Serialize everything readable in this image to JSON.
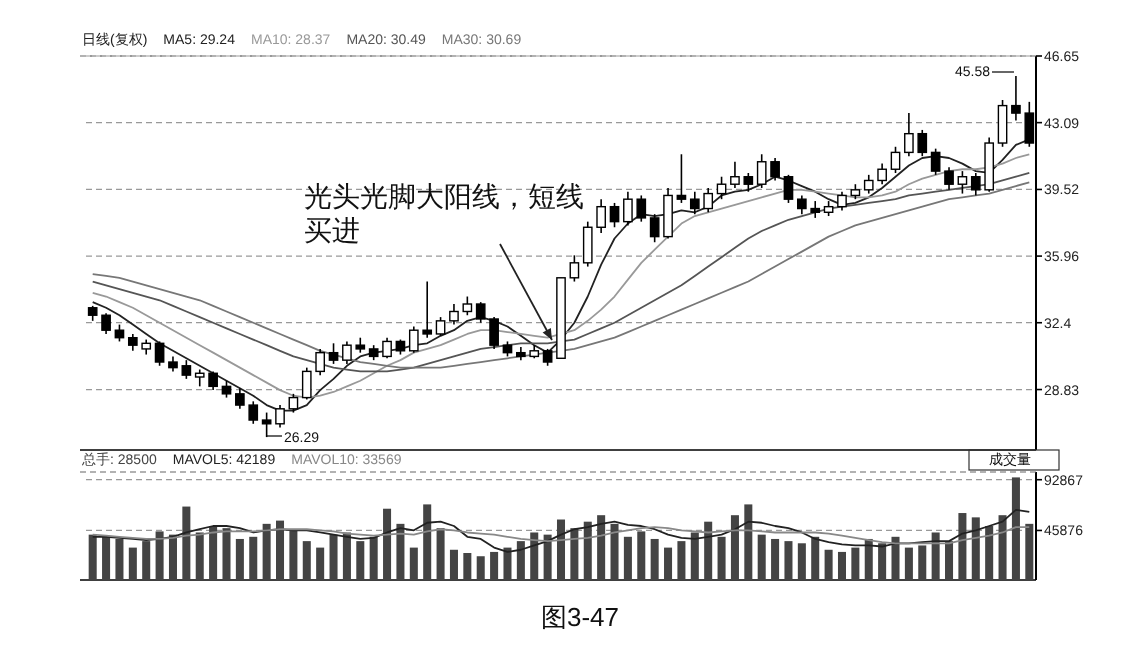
{
  "chart_data": [
    {
      "type": "candlestick",
      "title": "日线(复权)",
      "legend": "top left",
      "grid": "y",
      "categories": [
        null,
        null,
        null,
        null,
        null,
        null,
        null,
        null,
        null,
        null,
        null,
        null,
        null,
        null,
        null,
        null,
        null,
        null,
        null,
        null,
        null,
        null,
        null,
        null,
        null,
        null,
        null,
        null,
        null,
        null,
        null,
        null,
        null,
        null,
        null,
        null,
        null,
        null,
        null,
        null,
        null,
        null,
        null,
        null,
        null,
        null,
        null,
        null,
        null,
        null,
        null,
        null,
        null,
        null,
        null,
        null,
        null,
        null,
        null,
        null,
        null,
        null,
        null,
        null,
        null,
        null,
        null,
        null,
        null,
        null,
        null
      ],
      "ohlc": [
        [
          33.2,
          33.3,
          32.5,
          32.8
        ],
        [
          32.8,
          32.9,
          31.8,
          32.0
        ],
        [
          32.0,
          32.3,
          31.4,
          31.6
        ],
        [
          31.6,
          31.8,
          30.9,
          31.2
        ],
        [
          31.0,
          31.5,
          30.7,
          31.3
        ],
        [
          31.3,
          31.4,
          30.1,
          30.3
        ],
        [
          30.3,
          30.6,
          29.8,
          30.0
        ],
        [
          30.1,
          30.4,
          29.4,
          29.6
        ],
        [
          29.5,
          29.9,
          29.0,
          29.7
        ],
        [
          29.7,
          29.8,
          28.8,
          29.0
        ],
        [
          29.0,
          29.3,
          28.4,
          28.6
        ],
        [
          28.6,
          28.9,
          27.8,
          28.0
        ],
        [
          28.0,
          28.2,
          27.0,
          27.2
        ],
        [
          27.2,
          27.6,
          26.29,
          27.0
        ],
        [
          27.0,
          28.0,
          26.8,
          27.8
        ],
        [
          27.8,
          28.6,
          27.6,
          28.4
        ],
        [
          28.4,
          30.0,
          28.3,
          29.8
        ],
        [
          29.8,
          31.0,
          29.6,
          30.8
        ],
        [
          30.8,
          31.3,
          30.2,
          30.4
        ],
        [
          30.4,
          31.4,
          30.2,
          31.2
        ],
        [
          31.2,
          31.6,
          30.8,
          31.0
        ],
        [
          31.0,
          31.2,
          30.4,
          30.6
        ],
        [
          30.6,
          31.6,
          30.5,
          31.4
        ],
        [
          31.4,
          31.5,
          30.7,
          30.9
        ],
        [
          30.9,
          32.2,
          30.8,
          32.0
        ],
        [
          32.0,
          34.6,
          31.6,
          31.8
        ],
        [
          31.8,
          32.7,
          31.7,
          32.5
        ],
        [
          32.5,
          33.4,
          32.3,
          33.0
        ],
        [
          33.0,
          33.8,
          32.8,
          33.4
        ],
        [
          33.4,
          33.5,
          32.4,
          32.6
        ],
        [
          32.6,
          32.7,
          31.0,
          31.2
        ],
        [
          31.2,
          31.4,
          30.6,
          30.8
        ],
        [
          30.8,
          31.1,
          30.4,
          30.6
        ],
        [
          30.6,
          31.2,
          30.5,
          30.9
        ],
        [
          30.9,
          31.0,
          30.1,
          30.3
        ],
        [
          30.5,
          34.8,
          30.5,
          34.8
        ],
        [
          34.8,
          36.0,
          34.6,
          35.6
        ],
        [
          35.6,
          37.8,
          35.4,
          37.5
        ],
        [
          37.5,
          39.0,
          37.2,
          38.6
        ],
        [
          38.6,
          38.8,
          37.5,
          37.8
        ],
        [
          37.8,
          39.4,
          37.6,
          39.0
        ],
        [
          39.0,
          39.2,
          37.8,
          38.0
        ],
        [
          38.0,
          38.2,
          36.7,
          37.0
        ],
        [
          37.0,
          39.6,
          36.9,
          39.2
        ],
        [
          39.2,
          41.4,
          38.8,
          39.0
        ],
        [
          39.0,
          39.4,
          38.2,
          38.5
        ],
        [
          38.5,
          39.6,
          38.3,
          39.3
        ],
        [
          39.3,
          40.2,
          39.0,
          39.8
        ],
        [
          39.8,
          41.0,
          39.6,
          40.2
        ],
        [
          40.2,
          40.4,
          39.4,
          39.8
        ],
        [
          39.8,
          41.4,
          39.6,
          41.0
        ],
        [
          41.0,
          41.2,
          40.0,
          40.2
        ],
        [
          40.2,
          40.3,
          38.8,
          39.0
        ],
        [
          39.0,
          39.2,
          38.2,
          38.5
        ],
        [
          38.5,
          38.9,
          38.0,
          38.3
        ],
        [
          38.3,
          38.9,
          38.1,
          38.6
        ],
        [
          38.6,
          39.4,
          38.4,
          39.2
        ],
        [
          39.2,
          39.8,
          39.0,
          39.5
        ],
        [
          39.5,
          40.3,
          39.3,
          40.0
        ],
        [
          40.0,
          40.9,
          39.8,
          40.6
        ],
        [
          40.6,
          41.8,
          40.4,
          41.5
        ],
        [
          41.5,
          43.6,
          41.3,
          42.5
        ],
        [
          42.5,
          42.7,
          41.3,
          41.5
        ],
        [
          41.5,
          41.7,
          40.3,
          40.5
        ],
        [
          40.5,
          40.7,
          39.5,
          39.8
        ],
        [
          39.8,
          40.5,
          39.3,
          40.2
        ],
        [
          40.2,
          40.4,
          39.2,
          39.5
        ],
        [
          39.5,
          42.3,
          39.4,
          42.0
        ],
        [
          42.0,
          44.3,
          41.8,
          44.0
        ],
        [
          44.0,
          45.58,
          43.2,
          43.6
        ],
        [
          43.6,
          44.2,
          41.8,
          42.0
        ]
      ],
      "color": "#000000",
      "series": [
        {
          "type": "line",
          "name": "MA5: 29.24",
          "color": "#222222",
          "values": [
            33.5,
            33.2,
            32.8,
            32.3,
            31.8,
            31.3,
            30.9,
            30.5,
            30.1,
            29.7,
            29.3,
            28.9,
            28.5,
            28.0,
            27.7,
            27.7,
            28.0,
            28.8,
            29.4,
            30.1,
            30.6,
            30.8,
            30.9,
            31.0,
            31.2,
            31.3,
            31.7,
            32.0,
            32.5,
            32.7,
            32.5,
            32.2,
            31.7,
            31.2,
            30.8,
            31.5,
            32.4,
            33.8,
            35.5,
            36.9,
            37.7,
            38.2,
            38.1,
            38.2,
            38.4,
            38.3,
            38.6,
            39.2,
            39.4,
            39.5,
            39.8,
            40.2,
            40.0,
            39.7,
            39.4,
            39.0,
            38.7,
            38.8,
            39.1,
            39.6,
            40.2,
            40.8,
            41.2,
            41.3,
            41.2,
            40.9,
            40.5,
            40.4,
            41.1,
            41.9,
            42.2
          ]
        },
        {
          "type": "line",
          "name": "MA10: 28.37",
          "color": "#999999",
          "values": [
            34.0,
            33.8,
            33.5,
            33.2,
            32.8,
            32.4,
            32.0,
            31.6,
            31.2,
            30.8,
            30.4,
            30.0,
            29.6,
            29.2,
            28.8,
            28.5,
            28.4,
            28.5,
            28.7,
            29.0,
            29.3,
            29.7,
            30.1,
            30.4,
            30.8,
            31.0,
            31.2,
            31.5,
            31.8,
            32.0,
            32.0,
            31.9,
            31.8,
            31.7,
            31.6,
            31.8,
            32.0,
            32.5,
            33.1,
            33.8,
            34.7,
            35.6,
            36.3,
            37.0,
            37.7,
            38.1,
            38.3,
            38.5,
            38.7,
            38.9,
            39.1,
            39.3,
            39.5,
            39.5,
            39.4,
            39.3,
            39.2,
            39.1,
            39.1,
            39.2,
            39.4,
            39.8,
            40.1,
            40.3,
            40.5,
            40.6,
            40.6,
            40.7,
            40.9,
            41.2,
            41.4
          ]
        },
        {
          "type": "line",
          "name": "MA20: 30.49",
          "color": "#555555",
          "values": [
            34.6,
            34.4,
            34.2,
            34.0,
            33.8,
            33.6,
            33.3,
            33.0,
            32.7,
            32.4,
            32.1,
            31.8,
            31.5,
            31.2,
            30.9,
            30.6,
            30.4,
            30.2,
            30.0,
            29.9,
            29.8,
            29.8,
            29.8,
            29.9,
            30.0,
            30.2,
            30.4,
            30.6,
            30.8,
            31.0,
            31.1,
            31.2,
            31.3,
            31.3,
            31.3,
            31.4,
            31.5,
            31.8,
            32.1,
            32.4,
            32.8,
            33.2,
            33.6,
            34.0,
            34.4,
            34.9,
            35.4,
            35.9,
            36.4,
            36.9,
            37.3,
            37.6,
            37.9,
            38.1,
            38.3,
            38.5,
            38.6,
            38.7,
            38.8,
            38.9,
            39.0,
            39.2,
            39.3,
            39.4,
            39.5,
            39.6,
            39.7,
            39.8,
            40.0,
            40.2,
            40.4
          ]
        },
        {
          "type": "line",
          "name": "MA30: 30.69",
          "color": "#777777",
          "values": [
            35.0,
            34.9,
            34.8,
            34.6,
            34.4,
            34.2,
            34.0,
            33.8,
            33.6,
            33.3,
            33.0,
            32.7,
            32.4,
            32.1,
            31.8,
            31.5,
            31.2,
            30.9,
            30.7,
            30.5,
            30.3,
            30.2,
            30.1,
            30.0,
            30.0,
            30.0,
            30.0,
            30.1,
            30.2,
            30.3,
            30.4,
            30.5,
            30.6,
            30.7,
            30.8,
            30.9,
            31.0,
            31.2,
            31.4,
            31.6,
            31.9,
            32.2,
            32.5,
            32.8,
            33.1,
            33.4,
            33.7,
            34.0,
            34.3,
            34.6,
            35.0,
            35.4,
            35.8,
            36.2,
            36.6,
            37.0,
            37.3,
            37.6,
            37.8,
            38.0,
            38.2,
            38.4,
            38.6,
            38.8,
            39.0,
            39.1,
            39.2,
            39.3,
            39.5,
            39.7,
            39.9
          ]
        }
      ],
      "ylim": [
        25.6,
        46.65
      ],
      "yticks": [
        46.65,
        43.09,
        39.52,
        35.96,
        32.4,
        28.83
      ],
      "annotations": [
        "45.58",
        "26.29",
        "光头光脚大阳线，短线买进",
        "图3-47"
      ]
    },
    {
      "type": "bar",
      "legend": "top left",
      "grid": "y",
      "categories": [
        null,
        null,
        null,
        null,
        null,
        null,
        null,
        null,
        null,
        null,
        null,
        null,
        null,
        null,
        null,
        null,
        null,
        null,
        null,
        null,
        null,
        null,
        null,
        null,
        null,
        null,
        null,
        null,
        null,
        null,
        null,
        null,
        null,
        null,
        null,
        null,
        null,
        null,
        null,
        null,
        null,
        null,
        null,
        null,
        null,
        null,
        null,
        null,
        null,
        null,
        null,
        null,
        null,
        null,
        null,
        null,
        null,
        null,
        null,
        null,
        null,
        null,
        null,
        null,
        null,
        null,
        null,
        null,
        null,
        null,
        null
      ],
      "series": [
        {
          "name": "总手: 28500",
          "color": "#444444",
          "values": [
            42000,
            40000,
            38000,
            30000,
            36000,
            45000,
            42000,
            68000,
            44000,
            50000,
            48000,
            38000,
            40000,
            52000,
            55000,
            46000,
            36000,
            30000,
            42000,
            44000,
            36000,
            40000,
            66000,
            52000,
            30000,
            70000,
            48000,
            28000,
            25000,
            22000,
            26000,
            30000,
            36000,
            44000,
            42000,
            56000,
            48000,
            54000,
            60000,
            52000,
            40000,
            45000,
            38000,
            30000,
            36000,
            44000,
            54000,
            40000,
            60000,
            70000,
            42000,
            38000,
            36000,
            34000,
            40000,
            28000,
            26000,
            30000,
            38000,
            34000,
            40000,
            30000,
            32000,
            44000,
            36000,
            62000,
            58000,
            50000,
            60000,
            95000,
            52000
          ]
        },
        {
          "type": "line",
          "name": "MAVOL5: 42189",
          "color": "#222222",
          "values": [
            40000,
            40000,
            39000,
            38000,
            37000,
            38000,
            40000,
            44000,
            47000,
            50000,
            50000,
            48000,
            44000,
            46000,
            47000,
            46000,
            46000,
            44000,
            42000,
            40000,
            38000,
            39000,
            44000,
            48000,
            46000,
            53000,
            54000,
            50000,
            40000,
            38000,
            30000,
            26000,
            28000,
            32000,
            36000,
            42000,
            47000,
            49000,
            52000,
            54000,
            51000,
            50000,
            47000,
            42000,
            39000,
            38000,
            40000,
            42000,
            47000,
            54000,
            53000,
            50000,
            48000,
            44000,
            38000,
            35000,
            33000,
            32000,
            32000,
            31000,
            34000,
            34000,
            35000,
            36000,
            36000,
            43000,
            46000,
            50000,
            54000,
            65000,
            63000
          ]
        },
        {
          "type": "line",
          "name": "MAVOL10: 33569",
          "color": "#888888",
          "values": [
            42000,
            41000,
            40000,
            39000,
            38000,
            38000,
            39000,
            41000,
            42000,
            44000,
            45000,
            45000,
            45000,
            46000,
            47000,
            47000,
            47000,
            46000,
            45000,
            43000,
            42000,
            41000,
            42000,
            43000,
            42000,
            45000,
            47000,
            46000,
            44000,
            43000,
            42000,
            40000,
            38000,
            37000,
            36000,
            37000,
            38000,
            39000,
            41000,
            44000,
            46000,
            48000,
            49000,
            48000,
            46000,
            45000,
            44000,
            45000,
            46000,
            46000,
            45000,
            44000,
            44000,
            44000,
            44000,
            43000,
            41000,
            39000,
            37000,
            35000,
            34000,
            34000,
            34000,
            34000,
            34000,
            37000,
            39000,
            41000,
            44000,
            49000,
            49000
          ]
        }
      ],
      "ylim": [
        0,
        100000
      ],
      "yticks": [
        92867,
        45876
      ],
      "annotations": [
        "成交量"
      ]
    }
  ]
}
